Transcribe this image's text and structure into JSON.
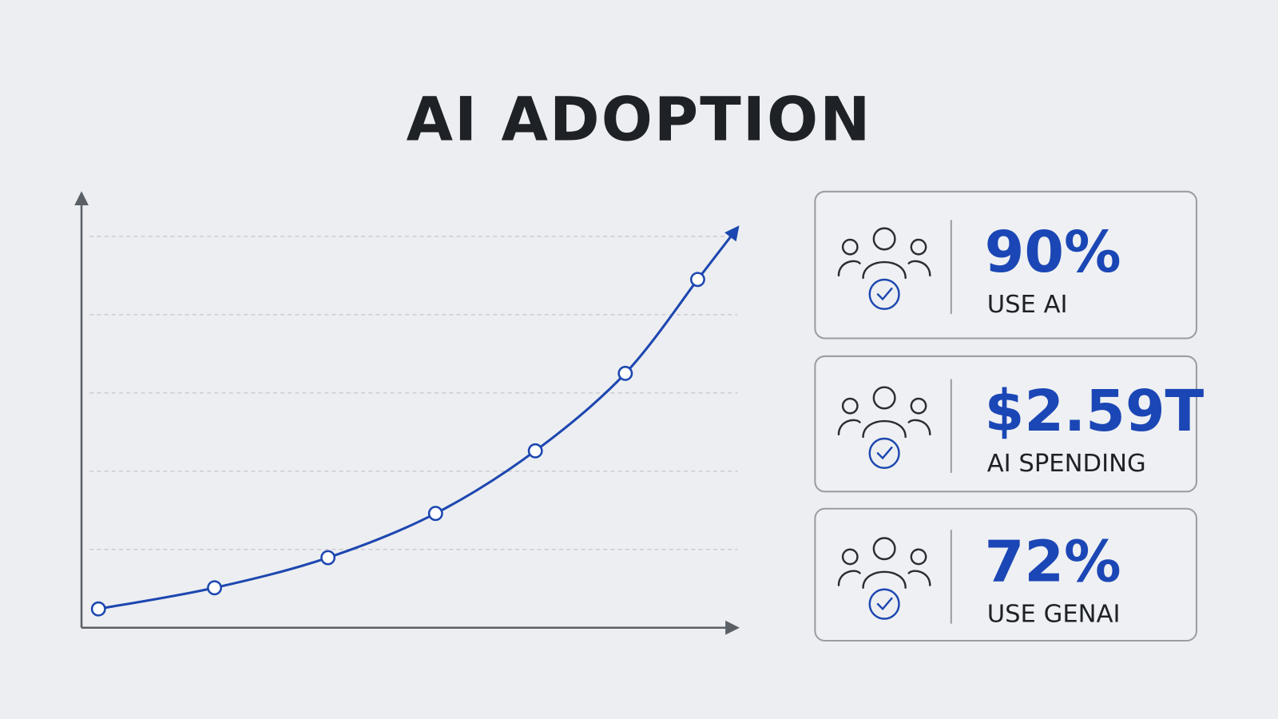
{
  "title": "AI ADOPTION",
  "chart_data": {
    "type": "line",
    "x": [
      2.6,
      20.4,
      37.8,
      54.3,
      69.6,
      83.4,
      94.5
    ],
    "series": [
      {
        "color": "#1d47b0",
        "values": [
          4.8,
          10.2,
          17.9,
          29.2,
          45.2,
          65,
          89
        ]
      }
    ],
    "xlim": [
      0,
      100
    ],
    "ylim": [
      0,
      100
    ],
    "yticks": [
      20,
      40,
      60,
      80,
      100
    ],
    "grid": true
  },
  "stats": [
    {
      "value": "90%",
      "label": "USE AI"
    },
    {
      "value": "$2.59T",
      "label": "AI SPENDING"
    },
    {
      "value": "72%",
      "label": "USE GENAI"
    }
  ]
}
